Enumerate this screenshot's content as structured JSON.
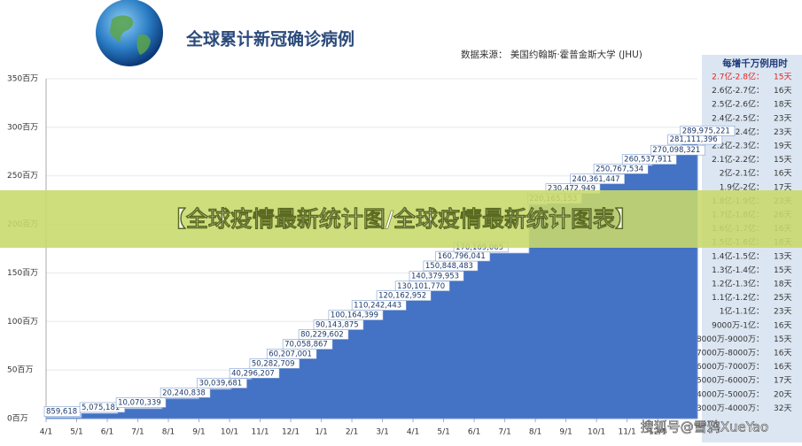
{
  "header": {
    "title": "全球累计新冠确诊病例",
    "source": "数据来源：  美国约翰斯·霍普金斯大学 (JHU)"
  },
  "banner": "【全球疫情最新统计图/全球疫情最新统计图表】",
  "watermark": "搜狐号@雪鸦XueYao",
  "side_table": {
    "title": "每增千万例用时",
    "highlight_row": 0,
    "rows": [
      [
        "2.7亿-2.8亿：",
        "15天"
      ],
      [
        "2.6亿-2.7亿：",
        "16天"
      ],
      [
        "2.5亿-2.6亿：",
        "18天"
      ],
      [
        "2.4亿-2.5亿：",
        "23天"
      ],
      [
        "2.3亿-2.4亿：",
        "23天"
      ],
      [
        "2.2亿-2.3亿：",
        "19天"
      ],
      [
        "2.1亿-2.2亿：",
        "15天"
      ],
      [
        "2亿-2.1亿：",
        "16天"
      ],
      [
        "1.9亿-2亿：",
        "17天"
      ],
      [
        "1.8亿-1.9亿：",
        "23天"
      ],
      [
        "1.7亿-1.8亿：",
        "26天"
      ],
      [
        "1.6亿-1.7亿：",
        "16天"
      ],
      [
        "1.5亿-1.6亿：",
        "18天"
      ],
      [
        "1.4亿-1.5亿：",
        "13天"
      ],
      [
        "1.3亿-1.4亿：",
        "15天"
      ],
      [
        "1.2亿-1.3亿：",
        "18天"
      ],
      [
        "1.1亿-1.2亿：",
        "25天"
      ],
      [
        "1亿-1.1亿：",
        "23天"
      ],
      [
        "9000万-1亿：",
        "16天"
      ],
      [
        "8000万-9000万：",
        "15天"
      ],
      [
        "7000万-8000万：",
        "16天"
      ],
      [
        "6000万-7000万：",
        "16天"
      ],
      [
        "5000万-6000万：",
        "17天"
      ],
      [
        "4000万-5000万：",
        "20天"
      ],
      [
        "3000万-4000万：",
        "32天"
      ]
    ]
  },
  "chart_data": {
    "type": "step-area",
    "color": "#4472c4",
    "ylim": [
      0,
      350
    ],
    "yticks": [
      {
        "value": 0,
        "label": "0百万"
      },
      {
        "value": 50,
        "label": "50百万"
      },
      {
        "value": 100,
        "label": "100百万"
      },
      {
        "value": 150,
        "label": "150百万"
      },
      {
        "value": 200,
        "label": "200百万"
      },
      {
        "value": 250,
        "label": "250百万"
      },
      {
        "value": 300,
        "label": "300百万"
      },
      {
        "value": 350,
        "label": "350百万"
      }
    ],
    "xlim": [
      0,
      21.3
    ],
    "xticks": [
      {
        "value": 0,
        "label": "4/1"
      },
      {
        "value": 1,
        "label": "5/1"
      },
      {
        "value": 2,
        "label": "6/1"
      },
      {
        "value": 3,
        "label": "7/1"
      },
      {
        "value": 4,
        "label": "8/1"
      },
      {
        "value": 5,
        "label": "9/1"
      },
      {
        "value": 6,
        "label": "10/1"
      },
      {
        "value": 7,
        "label": "11/1"
      },
      {
        "value": 8,
        "label": "12/1"
      },
      {
        "value": 9,
        "label": "1/1"
      },
      {
        "value": 10,
        "label": "2/1"
      },
      {
        "value": 11,
        "label": "3/1"
      },
      {
        "value": 12,
        "label": "4/1"
      },
      {
        "value": 13,
        "label": "5/1"
      },
      {
        "value": 14,
        "label": "6/1"
      },
      {
        "value": 15,
        "label": "7/1"
      },
      {
        "value": 16,
        "label": "8/1"
      },
      {
        "value": 17,
        "label": "9/1"
      },
      {
        "value": 18,
        "label": "10/1"
      },
      {
        "value": 19,
        "label": "11/1"
      },
      {
        "value": 20,
        "label": "12/1"
      }
    ],
    "x": [
      0,
      1.16,
      2.35,
      3.8,
      5.0,
      6.06,
      6.72,
      7.28,
      7.8,
      8.32,
      8.81,
      9.3,
      10.06,
      10.87,
      11.48,
      11.94,
      12.4,
      12.8,
      13.39,
      15.8,
      16.4,
      17.2,
      17.97,
      18.9,
      19.83,
      20.39,
      20.8
    ],
    "values": [
      0.859618,
      5.075181,
      10.070339,
      20.240838,
      30.039681,
      40.296207,
      50.282709,
      60.207001,
      70.058867,
      80.229602,
      90.143875,
      100.164399,
      110.242443,
      120.162952,
      130.10177,
      140.379953,
      150.848483,
      160.796041,
      170.169065,
      220.165153,
      230.472949,
      240.361447,
      250.767534,
      260.537911,
      270.098321,
      281.111396,
      289.975221
    ],
    "value_labels": [
      "859,618",
      "5,075,181",
      "10,070,339",
      "20,240,838",
      "30,039,681",
      "40,296,207",
      "50,282,709",
      "60,207,001",
      "70,058,867",
      "80,229,602",
      "90,143,875",
      "100,164,399",
      "110,242,443",
      "120,162,952",
      "130,101,770",
      "140,379,953",
      "150,848,483",
      "160,796,041",
      "170,169,065",
      "220,165,153",
      "230,472,949",
      "240,361,447",
      "250,767,534",
      "260,537,911",
      "270,098,321",
      "281,111,396",
      "289,975,221"
    ]
  }
}
